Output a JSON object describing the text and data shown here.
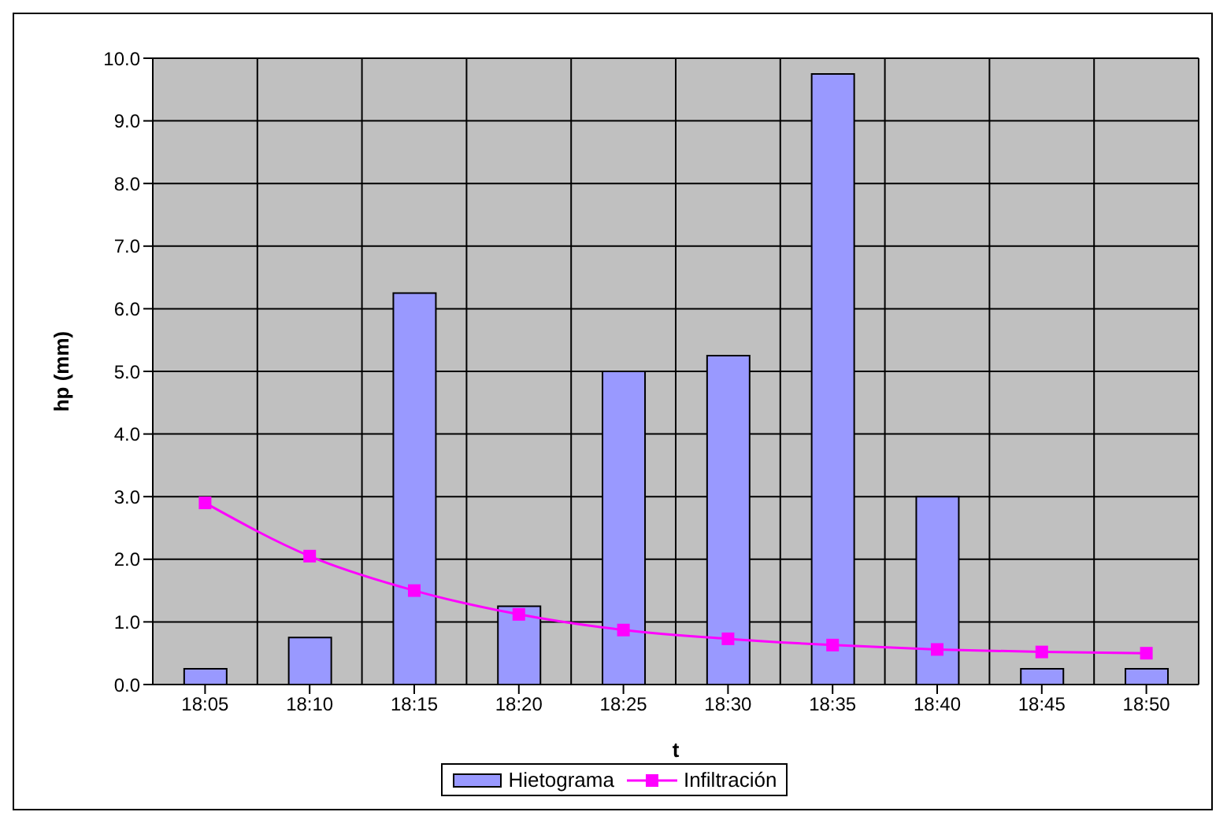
{
  "chart_data": {
    "type": "bar",
    "xlabel": "t",
    "ylabel": "hp (mm)",
    "categories": [
      "18:05",
      "18:10",
      "18:15",
      "18:20",
      "18:25",
      "18:30",
      "18:35",
      "18:40",
      "18:45",
      "18:50"
    ],
    "series": [
      {
        "name": "Hietograma",
        "color": "#9999ff",
        "values": [
          0.25,
          0.75,
          6.25,
          1.25,
          5.0,
          5.25,
          9.75,
          3.0,
          0.25,
          0.25
        ]
      },
      {
        "name": "Infiltración",
        "type": "line",
        "color": "#ff00ff",
        "marker": "square",
        "values": [
          2.9,
          2.05,
          1.5,
          1.12,
          0.87,
          0.73,
          0.63,
          0.56,
          0.52,
          0.5
        ]
      }
    ],
    "ylim": [
      0,
      10
    ],
    "yticks": [
      {
        "value": 0,
        "label": "0.0"
      },
      {
        "value": 1,
        "label": "1.0"
      },
      {
        "value": 2,
        "label": "2.0"
      },
      {
        "value": 3,
        "label": "3.0"
      },
      {
        "value": 4,
        "label": "4.0"
      },
      {
        "value": 5,
        "label": "5.0"
      },
      {
        "value": 6,
        "label": "6.0"
      },
      {
        "value": 7,
        "label": "7.0"
      },
      {
        "value": 8,
        "label": "8.0"
      },
      {
        "value": 9,
        "label": "9.0"
      },
      {
        "value": 10,
        "label": "10.0"
      }
    ],
    "grid": true,
    "legend": "bottom"
  }
}
